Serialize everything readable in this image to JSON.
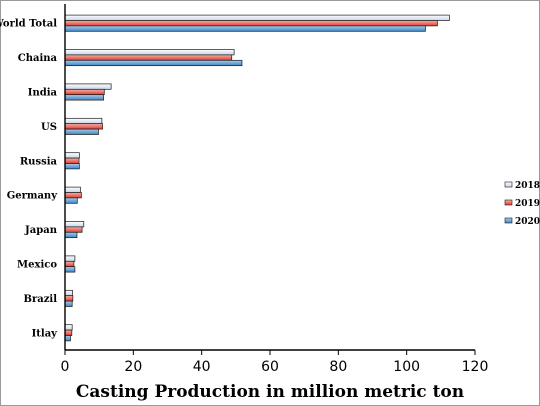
{
  "chart_data": {
    "type": "bar",
    "orientation": "horizontal",
    "title": "",
    "xlabel": "Casting Production in million metric ton",
    "ylabel": "",
    "xlim": [
      0,
      120
    ],
    "xticks": [
      0,
      20,
      40,
      60,
      80,
      100,
      120
    ],
    "grid": false,
    "legend_position": "right",
    "categories": [
      "World Total",
      "Chaina",
      "India",
      "US",
      "Russia",
      "Germany",
      "Japan",
      "Mexico",
      "Brazil",
      "Itlay"
    ],
    "series": [
      {
        "name": "2018",
        "color": "#dbe5f1",
        "values": [
          112.5,
          49.5,
          13.5,
          10.8,
          4.2,
          4.5,
          5.5,
          2.9,
          2.2,
          2.1
        ]
      },
      {
        "name": "2019",
        "color": "#e8413a",
        "values": [
          109.0,
          48.8,
          11.5,
          11.0,
          4.1,
          4.8,
          5.0,
          2.6,
          2.3,
          2.0
        ]
      },
      {
        "name": "2020",
        "color": "#5b9bd5",
        "values": [
          105.5,
          51.8,
          11.3,
          9.8,
          4.2,
          3.6,
          3.5,
          2.9,
          2.1,
          1.6
        ]
      }
    ]
  }
}
